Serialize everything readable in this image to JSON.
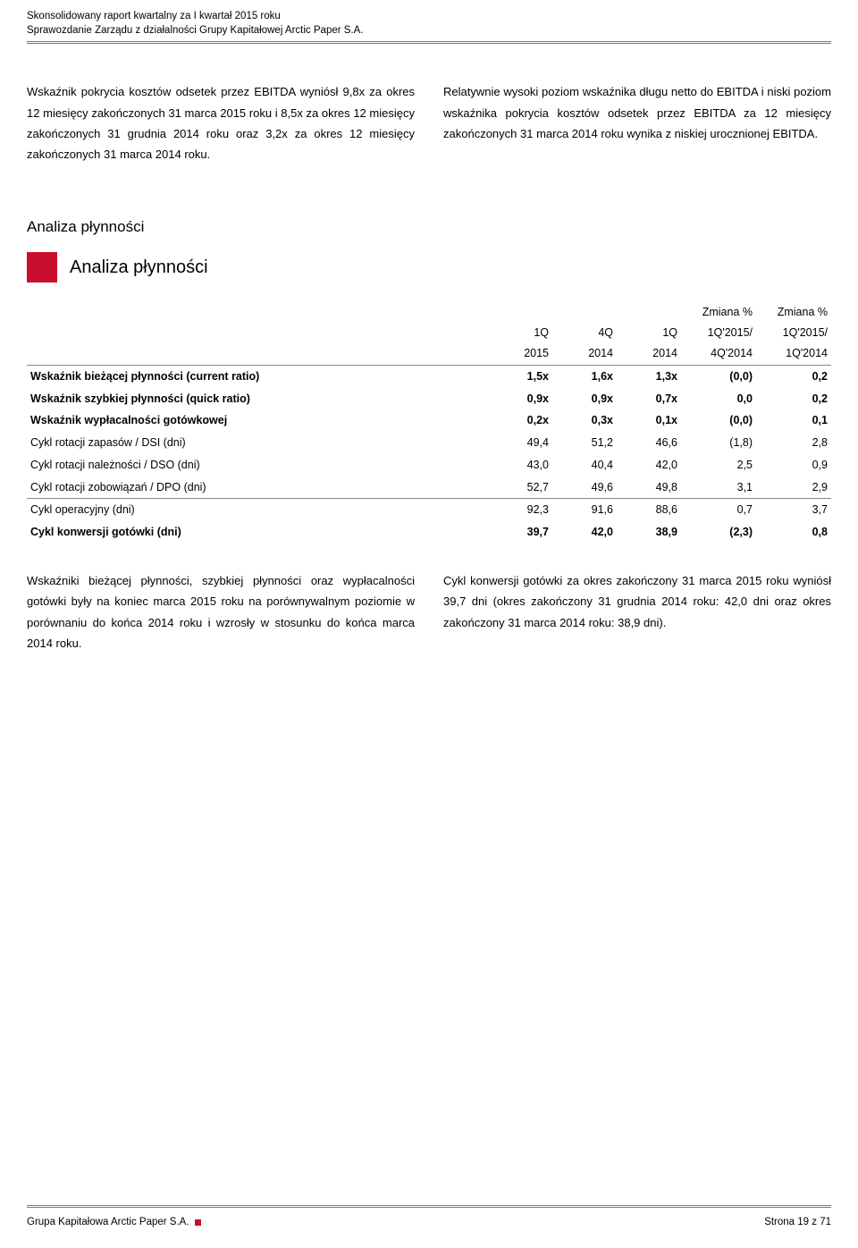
{
  "header": {
    "line1": "Skonsolidowany raport kwartalny za I kwartał 2015 roku",
    "line2": "Sprawozdanie Zarządu z działalności Grupy Kapitałowej Arctic Paper S.A."
  },
  "intro": {
    "left": "Wskaźnik pokrycia kosztów odsetek przez EBITDA wyniósł 9,8x za okres 12 miesięcy zakończonych 31 marca 2015 roku i 8,5x za okres 12 miesięcy zakończonych 31 grudnia 2014 roku oraz 3,2x za okres 12 miesięcy zakończonych 31 marca 2014 roku.",
    "right": "Relatywnie wysoki poziom wskaźnika długu netto do EBITDA i niski poziom wskaźnika pokrycia kosztów odsetek przez EBITDA za 12 miesięcy zakończonych 31 marca 2014 roku wynika z niskiej urocznionej EBITDA."
  },
  "section": {
    "label": "Analiza płynności",
    "title": "Analiza płynności"
  },
  "table": {
    "columns": [
      {
        "top": "",
        "mid": "1Q",
        "bot": "2015",
        "class": "col-narrow"
      },
      {
        "top": "",
        "mid": "4Q",
        "bot": "2014",
        "class": "col-narrow"
      },
      {
        "top": "",
        "mid": "1Q",
        "bot": "2014",
        "class": "col-narrow"
      },
      {
        "top": "Zmiana %",
        "mid": "1Q'2015/",
        "bot": "4Q'2014",
        "class": "col-wide"
      },
      {
        "top": "Zmiana %",
        "mid": "1Q'2015/",
        "bot": "1Q'2014",
        "class": "col-wide"
      }
    ],
    "rows": [
      {
        "label": "Wskaźnik bieżącej płynności (current ratio)",
        "v": [
          "1,5x",
          "1,6x",
          "1,3x",
          "(0,0)",
          "0,2"
        ],
        "bold": true
      },
      {
        "label": "Wskaźnik szybkiej płynności (quick ratio)",
        "v": [
          "0,9x",
          "0,9x",
          "0,7x",
          "0,0",
          "0,2"
        ],
        "bold": true
      },
      {
        "label": "Wskaźnik wypłacalności gotówkowej",
        "v": [
          "0,2x",
          "0,3x",
          "0,1x",
          "(0,0)",
          "0,1"
        ],
        "bold": true
      },
      {
        "label": "Cykl rotacji zapasów / DSI (dni)",
        "v": [
          "49,4",
          "51,2",
          "46,6",
          "(1,8)",
          "2,8"
        ],
        "bold": false
      },
      {
        "label": "Cykl rotacji należności / DSO (dni)",
        "v": [
          "43,0",
          "40,4",
          "42,0",
          "2,5",
          "0,9"
        ],
        "bold": false
      },
      {
        "label": "Cykl rotacji zobowiązań / DPO (dni)",
        "v": [
          "52,7",
          "49,6",
          "49,8",
          "3,1",
          "2,9"
        ],
        "bold": false,
        "underline": true
      },
      {
        "label": "Cykl operacyjny (dni)",
        "v": [
          "92,3",
          "91,6",
          "88,6",
          "0,7",
          "3,7"
        ],
        "bold": false
      },
      {
        "label": "Cykl konwersji gotówki (dni)",
        "v": [
          "39,7",
          "42,0",
          "38,9",
          "(2,3)",
          "0,8"
        ],
        "bold": true
      }
    ]
  },
  "commentary": {
    "left": "Wskaźniki bieżącej płynności, szybkiej płynności oraz wypłacalności gotówki były na koniec marca 2015 roku na porównywalnym poziomie w porównaniu do końca 2014 roku i wzrosły w stosunku do końca marca 2014 roku.",
    "right": "Cykl konwersji gotówki za okres zakończony 31 marca 2015 roku wyniósł 39,7 dni (okres zakończony 31 grudnia 2014 roku: 42,0 dni oraz okres zakończony 31 marca 2014 roku: 38,9 dni)."
  },
  "footer": {
    "left": "Grupa Kapitałowa Arctic Paper S.A.",
    "right": "Strona 19 z 71"
  },
  "colors": {
    "accent": "#c8102e",
    "border": "#7a7a7a",
    "text": "#000000",
    "background": "#ffffff"
  }
}
